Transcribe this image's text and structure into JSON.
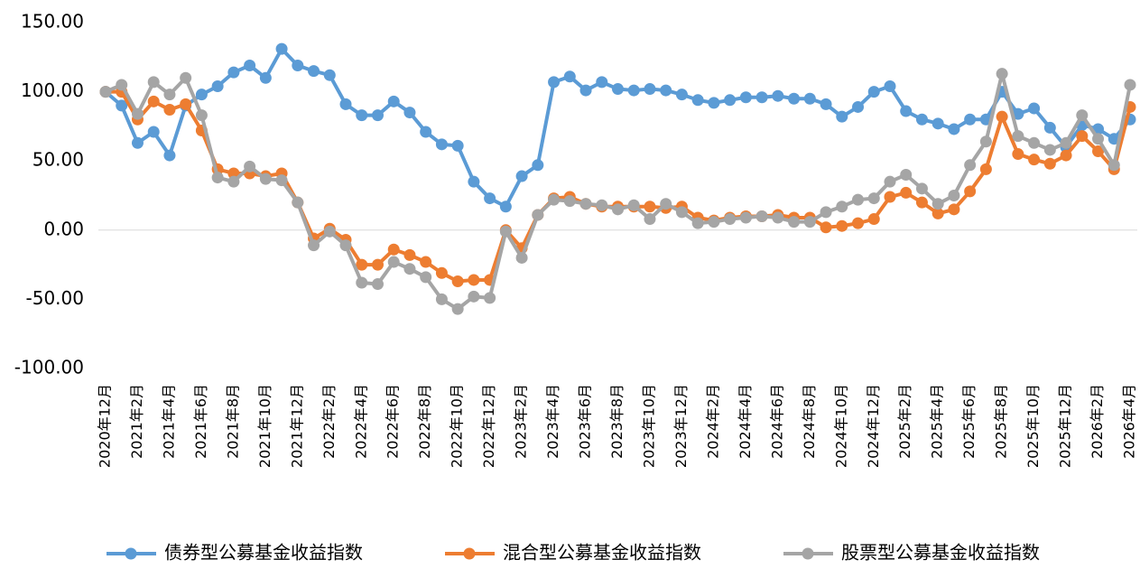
{
  "chart_data": {
    "type": "line",
    "categories": [
      "2020年12月",
      null,
      "2021年2月",
      null,
      "2021年4月",
      null,
      "2021年6月",
      null,
      "2021年8月",
      null,
      "2021年10月",
      null,
      "2021年12月",
      null,
      "2022年2月",
      null,
      "2022年4月",
      null,
      "2022年6月",
      null,
      "2022年8月",
      null,
      "2022年10月",
      null,
      "2022年12月",
      null,
      "2023年2月",
      null,
      "2023年4月",
      null,
      "2023年6月",
      null,
      "2023年8月",
      null,
      "2023年10月",
      null,
      "2023年12月",
      null,
      "2024年2月",
      null,
      "2024年4月",
      null,
      "2024年6月",
      null,
      "2024年8月",
      null,
      "2024年10月",
      null,
      "2024年12月",
      null,
      "2025年2月",
      null,
      "2025年4月",
      null,
      "2025年6月",
      null,
      "2025年8月",
      null,
      "2025年10月",
      null,
      "2025年12月",
      null,
      "2026年2月",
      null,
      "2026年4月"
    ],
    "series": [
      {
        "name": "债券型公募基金收益指数",
        "color": "#5b9bd5",
        "values": [
          100,
          90,
          63,
          71,
          54,
          90,
          98,
          104,
          114,
          119,
          110,
          131,
          119,
          115,
          112,
          91,
          83,
          83,
          93,
          85,
          71,
          62,
          61,
          35,
          23,
          17,
          39,
          47,
          107,
          111,
          101,
          107,
          102,
          101,
          102,
          101,
          98,
          94,
          92,
          94,
          96,
          96,
          97,
          95,
          95,
          91,
          82,
          89,
          100,
          104,
          86,
          80,
          77,
          73,
          80,
          80,
          100,
          84,
          88,
          74,
          60,
          76,
          73,
          66,
          80
        ]
      },
      {
        "name": "混合型公募基金收益指数",
        "color": "#ed7d31",
        "values": [
          100,
          100,
          80,
          93,
          87,
          91,
          72,
          44,
          41,
          41,
          39,
          41,
          20,
          -6,
          1,
          -7,
          -25,
          -25,
          -14,
          -18,
          -23,
          -31,
          -37,
          -36,
          -36,
          0,
          -13,
          11,
          23,
          24,
          19,
          17,
          17,
          17,
          17,
          16,
          17,
          9,
          7,
          9,
          10,
          10,
          11,
          9,
          9,
          2,
          3,
          5,
          8,
          24,
          27,
          20,
          12,
          15,
          28,
          44,
          82,
          55,
          51,
          48,
          54,
          68,
          57,
          44,
          89
        ]
      },
      {
        "name": "股票型公募基金收益指数",
        "color": "#a5a5a5",
        "values": [
          100,
          105,
          84,
          107,
          98,
          110,
          83,
          38,
          35,
          46,
          37,
          36,
          20,
          -11,
          -1,
          -11,
          -38,
          -39,
          -23,
          -28,
          -34,
          -50,
          -57,
          -48,
          -49,
          -1,
          -20,
          11,
          22,
          21,
          19,
          18,
          15,
          18,
          8,
          19,
          13,
          5,
          6,
          8,
          9,
          10,
          9,
          6,
          6,
          13,
          17,
          22,
          23,
          35,
          40,
          30,
          19,
          25,
          47,
          64,
          113,
          68,
          63,
          58,
          63,
          83,
          66,
          47,
          105
        ]
      }
    ],
    "ylim": [
      -100,
      150
    ],
    "yticks": [
      {
        "value": -100,
        "label": "-100.00"
      },
      {
        "value": -50,
        "label": "-50.00"
      },
      {
        "value": 0,
        "label": "0.00"
      },
      {
        "value": 50,
        "label": "50.00"
      },
      {
        "value": 100,
        "label": "100.00"
      },
      {
        "value": 150,
        "label": "150.00"
      }
    ],
    "grid": false,
    "legend": "bottom"
  }
}
